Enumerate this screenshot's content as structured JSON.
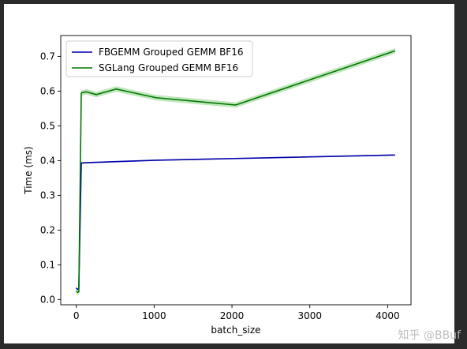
{
  "watermark": "知乎 @BBuf",
  "chart_data": {
    "type": "line",
    "title": "",
    "xlabel": "batch_size",
    "ylabel": "Time (ms)",
    "xlim": [
      -200,
      4300
    ],
    "ylim": [
      -0.015,
      0.76
    ],
    "xticks": [
      0,
      1000,
      2000,
      3000,
      4000
    ],
    "yticks": [
      0.0,
      0.1,
      0.2,
      0.3,
      0.4,
      0.5,
      0.6,
      0.7
    ],
    "grid": false,
    "legend_position": "top-left",
    "series": [
      {
        "name": "FBGEMM Grouped GEMM BF16",
        "color": "#0000aa",
        "x": [
          1,
          2,
          4,
          8,
          16,
          32,
          64,
          128,
          256,
          512,
          1024,
          2048,
          4096
        ],
        "y": [
          0.034,
          0.033,
          0.032,
          0.031,
          0.03,
          0.031,
          0.393,
          0.394,
          0.395,
          0.397,
          0.401,
          0.406,
          0.416
        ],
        "band": 0.002
      },
      {
        "name": "SGLang Grouped GEMM BF16",
        "color": "#007700",
        "band_color": "#a6dba0",
        "x": [
          1,
          2,
          4,
          8,
          16,
          32,
          64,
          128,
          256,
          512,
          1024,
          2048,
          4096
        ],
        "y": [
          0.025,
          0.024,
          0.023,
          0.022,
          0.021,
          0.022,
          0.595,
          0.598,
          0.59,
          0.606,
          0.581,
          0.56,
          0.716
        ],
        "band": 0.008
      }
    ]
  }
}
